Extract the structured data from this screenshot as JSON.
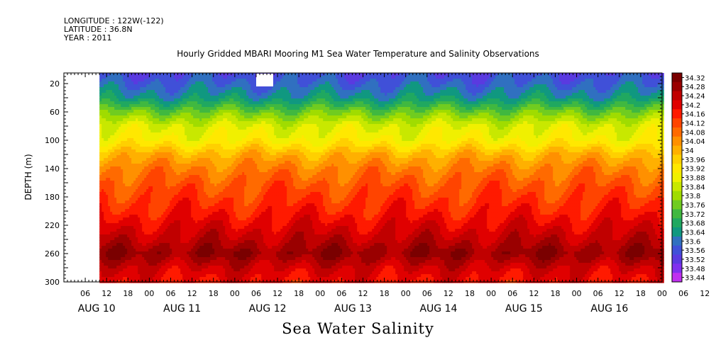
{
  "header": {
    "longitude": "LONGITUDE : 122W(-122)",
    "latitude": "LATITUDE : 36.8N",
    "year": "YEAR : 2011",
    "title": "Hourly Gridded MBARI Mooring M1 Sea Water Temperature and Salinity Observations"
  },
  "footer": {
    "variable_title": "Sea Water Salinity"
  },
  "chart_data": {
    "type": "heatmap",
    "title": "Hourly Gridded MBARI Mooring M1 Sea Water Temperature and Salinity Observations",
    "variable": "Sea Water Salinity",
    "ylabel": "DEPTH (m)",
    "xlabel": "",
    "y_ticks": [
      20,
      60,
      100,
      140,
      180,
      220,
      260,
      300
    ],
    "ylim": [
      300,
      5
    ],
    "x_hour_ticks": [
      "06",
      "12",
      "18",
      "00",
      "06",
      "12",
      "18",
      "00",
      "06",
      "12",
      "18",
      "00",
      "06",
      "12",
      "18",
      "00",
      "06",
      "12",
      "18",
      "00",
      "06",
      "12",
      "18",
      "00",
      "06",
      "12",
      "18",
      "00",
      "06",
      "12",
      "18",
      "00"
    ],
    "x_day_labels": [
      "AUG 10",
      "AUG 11",
      "AUG 12",
      "AUG 13",
      "AUG 14",
      "AUG 15",
      "AUG 16"
    ],
    "x_range_hours": [
      0,
      168
    ],
    "data_start_hour": 10,
    "colorbar_levels": [
      "34.32",
      "34.28",
      "34.24",
      "34.2",
      "34.16",
      "34.12",
      "34.08",
      "34.04",
      "34",
      "33.96",
      "33.92",
      "33.88",
      "33.84",
      "33.8",
      "33.76",
      "33.72",
      "33.68",
      "33.64",
      "33.6",
      "33.56",
      "33.52",
      "33.48",
      "33.44"
    ],
    "colorbar_colors": [
      "#7a0000",
      "#9a0000",
      "#c00000",
      "#e00000",
      "#ff1a00",
      "#ff4400",
      "#ff6a00",
      "#ff9000",
      "#ffb000",
      "#ffd000",
      "#ffe800",
      "#f0f000",
      "#c8e800",
      "#a0dc00",
      "#70cc20",
      "#40b840",
      "#20a860",
      "#109880",
      "#3070c0",
      "#4050d8",
      "#5a3ae0",
      "#8030ee",
      "#c030f0"
    ],
    "depth_profile": [
      {
        "depth": 5,
        "salinity": 33.55
      },
      {
        "depth": 20,
        "salinity": 33.58
      },
      {
        "depth": 40,
        "salinity": 33.64
      },
      {
        "depth": 60,
        "salinity": 33.76
      },
      {
        "depth": 80,
        "salinity": 33.86
      },
      {
        "depth": 100,
        "salinity": 33.9
      },
      {
        "depth": 120,
        "salinity": 34.0
      },
      {
        "depth": 140,
        "salinity": 34.06
      },
      {
        "depth": 160,
        "salinity": 34.1
      },
      {
        "depth": 180,
        "salinity": 34.13
      },
      {
        "depth": 200,
        "salinity": 34.16
      },
      {
        "depth": 220,
        "salinity": 34.2
      },
      {
        "depth": 240,
        "salinity": 34.24
      },
      {
        "depth": 260,
        "salinity": 34.29
      },
      {
        "depth": 280,
        "salinity": 34.22
      },
      {
        "depth": 300,
        "salinity": 34.18
      }
    ]
  }
}
